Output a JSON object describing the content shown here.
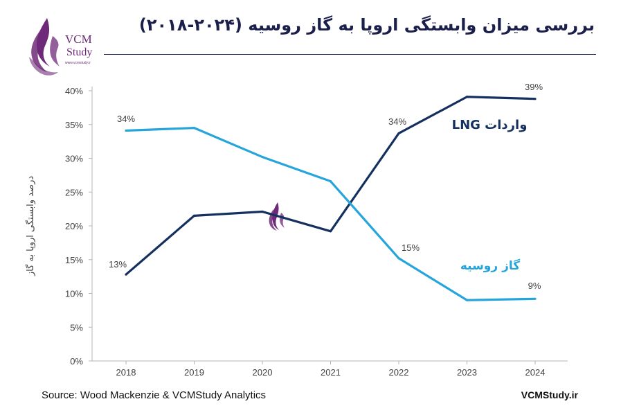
{
  "header": {
    "title": "بررسی میزان وابستگی اروپا به گاز روسیه (۲۰۲۴-۲۰۱۸)",
    "logo_text": "VCM",
    "logo_subtext": "Study",
    "logo_url": "www.vcmstudy.ir"
  },
  "footer": {
    "source": "Source: Wood Mackenzie & VCMStudy Analytics",
    "site": "VCMStudy.ir"
  },
  "colors": {
    "lng": "#15305e",
    "russian_gas": "#25a5dc",
    "title": "#1b1f4b",
    "logo": "#6e2a78"
  },
  "chart_data": {
    "type": "line",
    "title": "",
    "xlabel": "",
    "ylabel": "درصد وابستگی اروپا به گاز",
    "x": [
      "2018",
      "2019",
      "2020",
      "2021",
      "2022",
      "2023",
      "2024"
    ],
    "ylim": [
      0,
      40
    ],
    "yticks": [
      "0%",
      "5%",
      "10%",
      "15%",
      "20%",
      "25%",
      "30%",
      "35%",
      "40%"
    ],
    "grid": false,
    "series": [
      {
        "name": "واردات LNG",
        "values": [
          12.8,
          21.5,
          22.1,
          19.2,
          33.7,
          39.1,
          38.8
        ],
        "data_labels": [
          "13%",
          "",
          "",
          "",
          "34%",
          "",
          "39%"
        ]
      },
      {
        "name": "گاز روسیه",
        "values": [
          34.1,
          34.5,
          30.2,
          26.6,
          15.2,
          9.0,
          9.2
        ],
        "data_labels": [
          "34%",
          "",
          "",
          "",
          "15%",
          "",
          "9%"
        ]
      }
    ]
  }
}
